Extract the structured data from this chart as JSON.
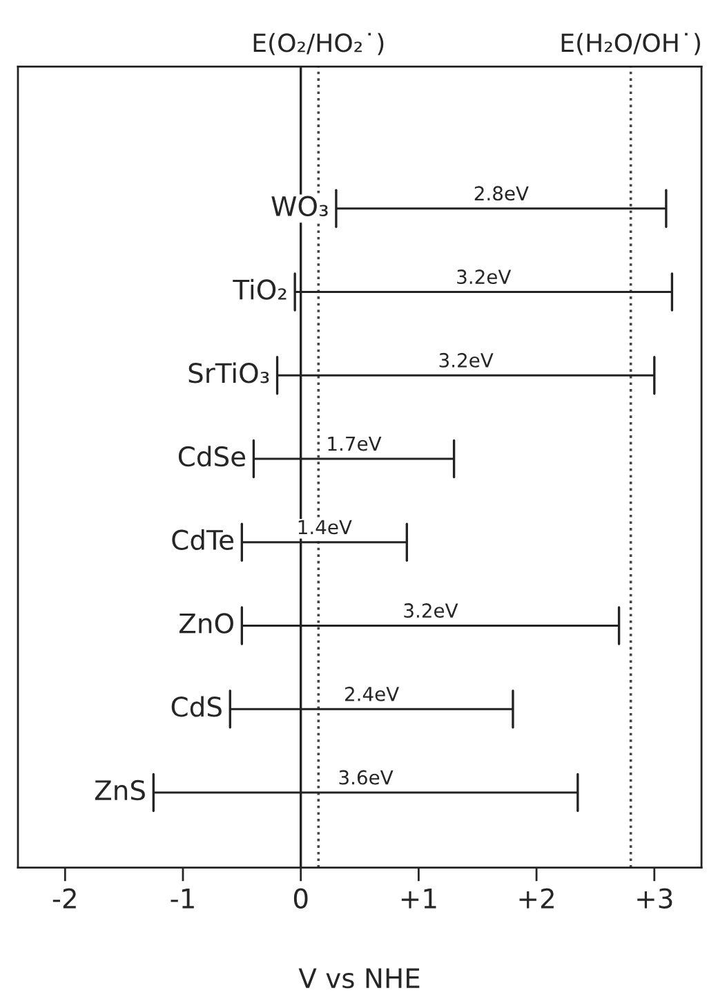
{
  "chart_data": {
    "type": "bar",
    "orientation": "horizontal",
    "xlabel": "V vs NHE",
    "categories": [
      "WO₃",
      "TiO₂",
      "SrTiO₃",
      "CdSe",
      "CdTe",
      "ZnO",
      "CdS",
      "ZnS"
    ],
    "base": [
      0.3,
      -0.05,
      -0.2,
      -0.4,
      -0.5,
      -0.5,
      -0.6,
      -1.25
    ],
    "values": [
      2.8,
      3.2,
      3.2,
      1.7,
      1.4,
      3.2,
      2.4,
      3.6
    ],
    "value_labels": [
      "2.8eV",
      "3.2eV",
      "3.2eV",
      "1.7eV",
      "1.4eV",
      "3.2eV",
      "2.4eV",
      "3.6eV"
    ],
    "color": "#222222",
    "xlim": [
      -2.4,
      3.4
    ],
    "xticks": [
      -2,
      -1,
      0,
      {
        "value": 1,
        "label": "+1"
      },
      {
        "value": 2,
        "label": "+2"
      },
      {
        "value": 3,
        "label": "+3"
      }
    ],
    "ref_lines": [
      {
        "axis": "x",
        "value": 0.15,
        "label": "E(O₂/HO₂˙)",
        "line_style": "dotted",
        "color": "#444444"
      },
      {
        "axis": "x",
        "value": 2.8,
        "label": "E(H₂O/OH˙)",
        "line_style": "dotted",
        "color": "#444444"
      }
    ],
    "grid": false,
    "legend": false
  }
}
